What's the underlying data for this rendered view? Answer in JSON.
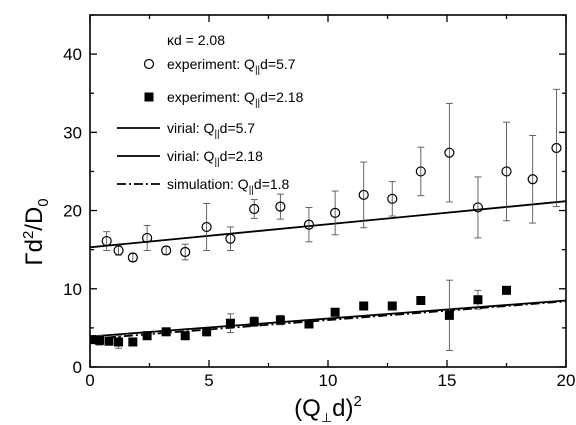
{
  "chart_data": {
    "type": "scatter",
    "xlabel": "(Q⊥d)²",
    "ylabel": "Γd²/D₀",
    "xlim": [
      0,
      20
    ],
    "ylim": [
      0,
      45
    ],
    "x_ticks": [
      0,
      5,
      10,
      15,
      20
    ],
    "y_ticks": [
      0,
      10,
      20,
      30,
      40
    ],
    "grid": false,
    "legend_position": "top-left",
    "annotation": "κd = 2.08",
    "series": [
      {
        "name": "experiment: Q||d=5.7",
        "marker": "open-circle",
        "points": [
          {
            "x": 0.7,
            "y": 16.1,
            "err": 1.2
          },
          {
            "x": 1.2,
            "y": 14.9,
            "err": 0.6
          },
          {
            "x": 1.8,
            "y": 14.0,
            "err": 0.5
          },
          {
            "x": 2.4,
            "y": 16.5,
            "err": 1.6
          },
          {
            "x": 3.2,
            "y": 14.9,
            "err": 0.5
          },
          {
            "x": 4.0,
            "y": 14.7,
            "err": 1.0
          },
          {
            "x": 4.9,
            "y": 17.9,
            "err": 3.0
          },
          {
            "x": 5.9,
            "y": 16.4,
            "err": 1.5
          },
          {
            "x": 6.9,
            "y": 20.2,
            "err": 1.2
          },
          {
            "x": 8.0,
            "y": 20.5,
            "err": 1.6
          },
          {
            "x": 9.2,
            "y": 18.2,
            "err": 2.2
          },
          {
            "x": 10.3,
            "y": 19.7,
            "err": 2.8
          },
          {
            "x": 11.5,
            "y": 22.0,
            "err": 4.2
          },
          {
            "x": 12.7,
            "y": 21.5,
            "err": 2.2
          },
          {
            "x": 13.9,
            "y": 25.0,
            "err": 3.1
          },
          {
            "x": 15.1,
            "y": 27.4,
            "err": 6.3
          },
          {
            "x": 16.3,
            "y": 20.4,
            "err": 3.9
          },
          {
            "x": 17.5,
            "y": 25.0,
            "err": 6.3
          },
          {
            "x": 18.6,
            "y": 24.0,
            "err": 5.6
          },
          {
            "x": 19.6,
            "y": 28.0,
            "err": 7.5
          }
        ]
      },
      {
        "name": "experiment: Q||d=2.18",
        "marker": "filled-square",
        "points": [
          {
            "x": 0.2,
            "y": 3.5,
            "err": 0.5
          },
          {
            "x": 0.4,
            "y": 3.4,
            "err": 0.6
          },
          {
            "x": 0.8,
            "y": 3.3,
            "err": 0.4
          },
          {
            "x": 1.2,
            "y": 3.2,
            "err": 0.8
          },
          {
            "x": 1.8,
            "y": 3.2,
            "err": 0.5
          },
          {
            "x": 2.4,
            "y": 4.0,
            "err": 0.5
          },
          {
            "x": 3.2,
            "y": 4.5,
            "err": 0.4
          },
          {
            "x": 4.0,
            "y": 4.0,
            "err": 0.5
          },
          {
            "x": 4.9,
            "y": 4.5,
            "err": 0.5
          },
          {
            "x": 5.9,
            "y": 5.6,
            "err": 1.2
          },
          {
            "x": 6.9,
            "y": 5.8,
            "err": 0.6
          },
          {
            "x": 8.0,
            "y": 6.0,
            "err": 0.6
          },
          {
            "x": 9.2,
            "y": 5.5,
            "err": 0.5
          },
          {
            "x": 10.3,
            "y": 7.0,
            "err": 0.0
          },
          {
            "x": 11.5,
            "y": 7.8,
            "err": 0.0
          },
          {
            "x": 12.7,
            "y": 7.8,
            "err": 0.0
          },
          {
            "x": 13.9,
            "y": 8.5,
            "err": 0.0
          },
          {
            "x": 15.1,
            "y": 6.6,
            "err": 4.5
          },
          {
            "x": 16.3,
            "y": 8.6,
            "err": 1.2
          },
          {
            "x": 17.5,
            "y": 9.8,
            "err": 0.0
          }
        ]
      },
      {
        "name": "virial: Q||d=5.7",
        "style": "solid",
        "line": [
          [
            0,
            15.3
          ],
          [
            20,
            21.2
          ]
        ]
      },
      {
        "name": "virial: Q||d=2.18",
        "style": "solid",
        "line": [
          [
            0,
            3.9
          ],
          [
            20,
            8.5
          ]
        ]
      },
      {
        "name": "simulation: Q||d=1.8",
        "style": "dash-dot",
        "line": [
          [
            0,
            3.6
          ],
          [
            20,
            8.4
          ]
        ]
      }
    ]
  },
  "axes": {
    "ylabel_prefix": "Γd",
    "ylabel_sup": "2",
    "ylabel_mid": "/D",
    "ylabel_sub": "0",
    "xlabel_prefix": "(Q",
    "xlabel_sub": "⊥",
    "xlabel_mid": "d)",
    "xlabel_sup": "2"
  },
  "legend": {
    "annotation": "κd = 2.08",
    "items": [
      {
        "prefix": "experiment: Q",
        "sub": "||",
        "suffix": "d=5.7"
      },
      {
        "prefix": "experiment: Q",
        "sub": "||",
        "suffix": "d=2.18"
      },
      {
        "prefix": "virial: Q",
        "sub": "||",
        "suffix": "d=5.7"
      },
      {
        "prefix": "virial: Q",
        "sub": "||",
        "suffix": "d=2.18"
      },
      {
        "prefix": "simulation: Q",
        "sub": "||",
        "suffix": "d=1.8"
      }
    ]
  }
}
